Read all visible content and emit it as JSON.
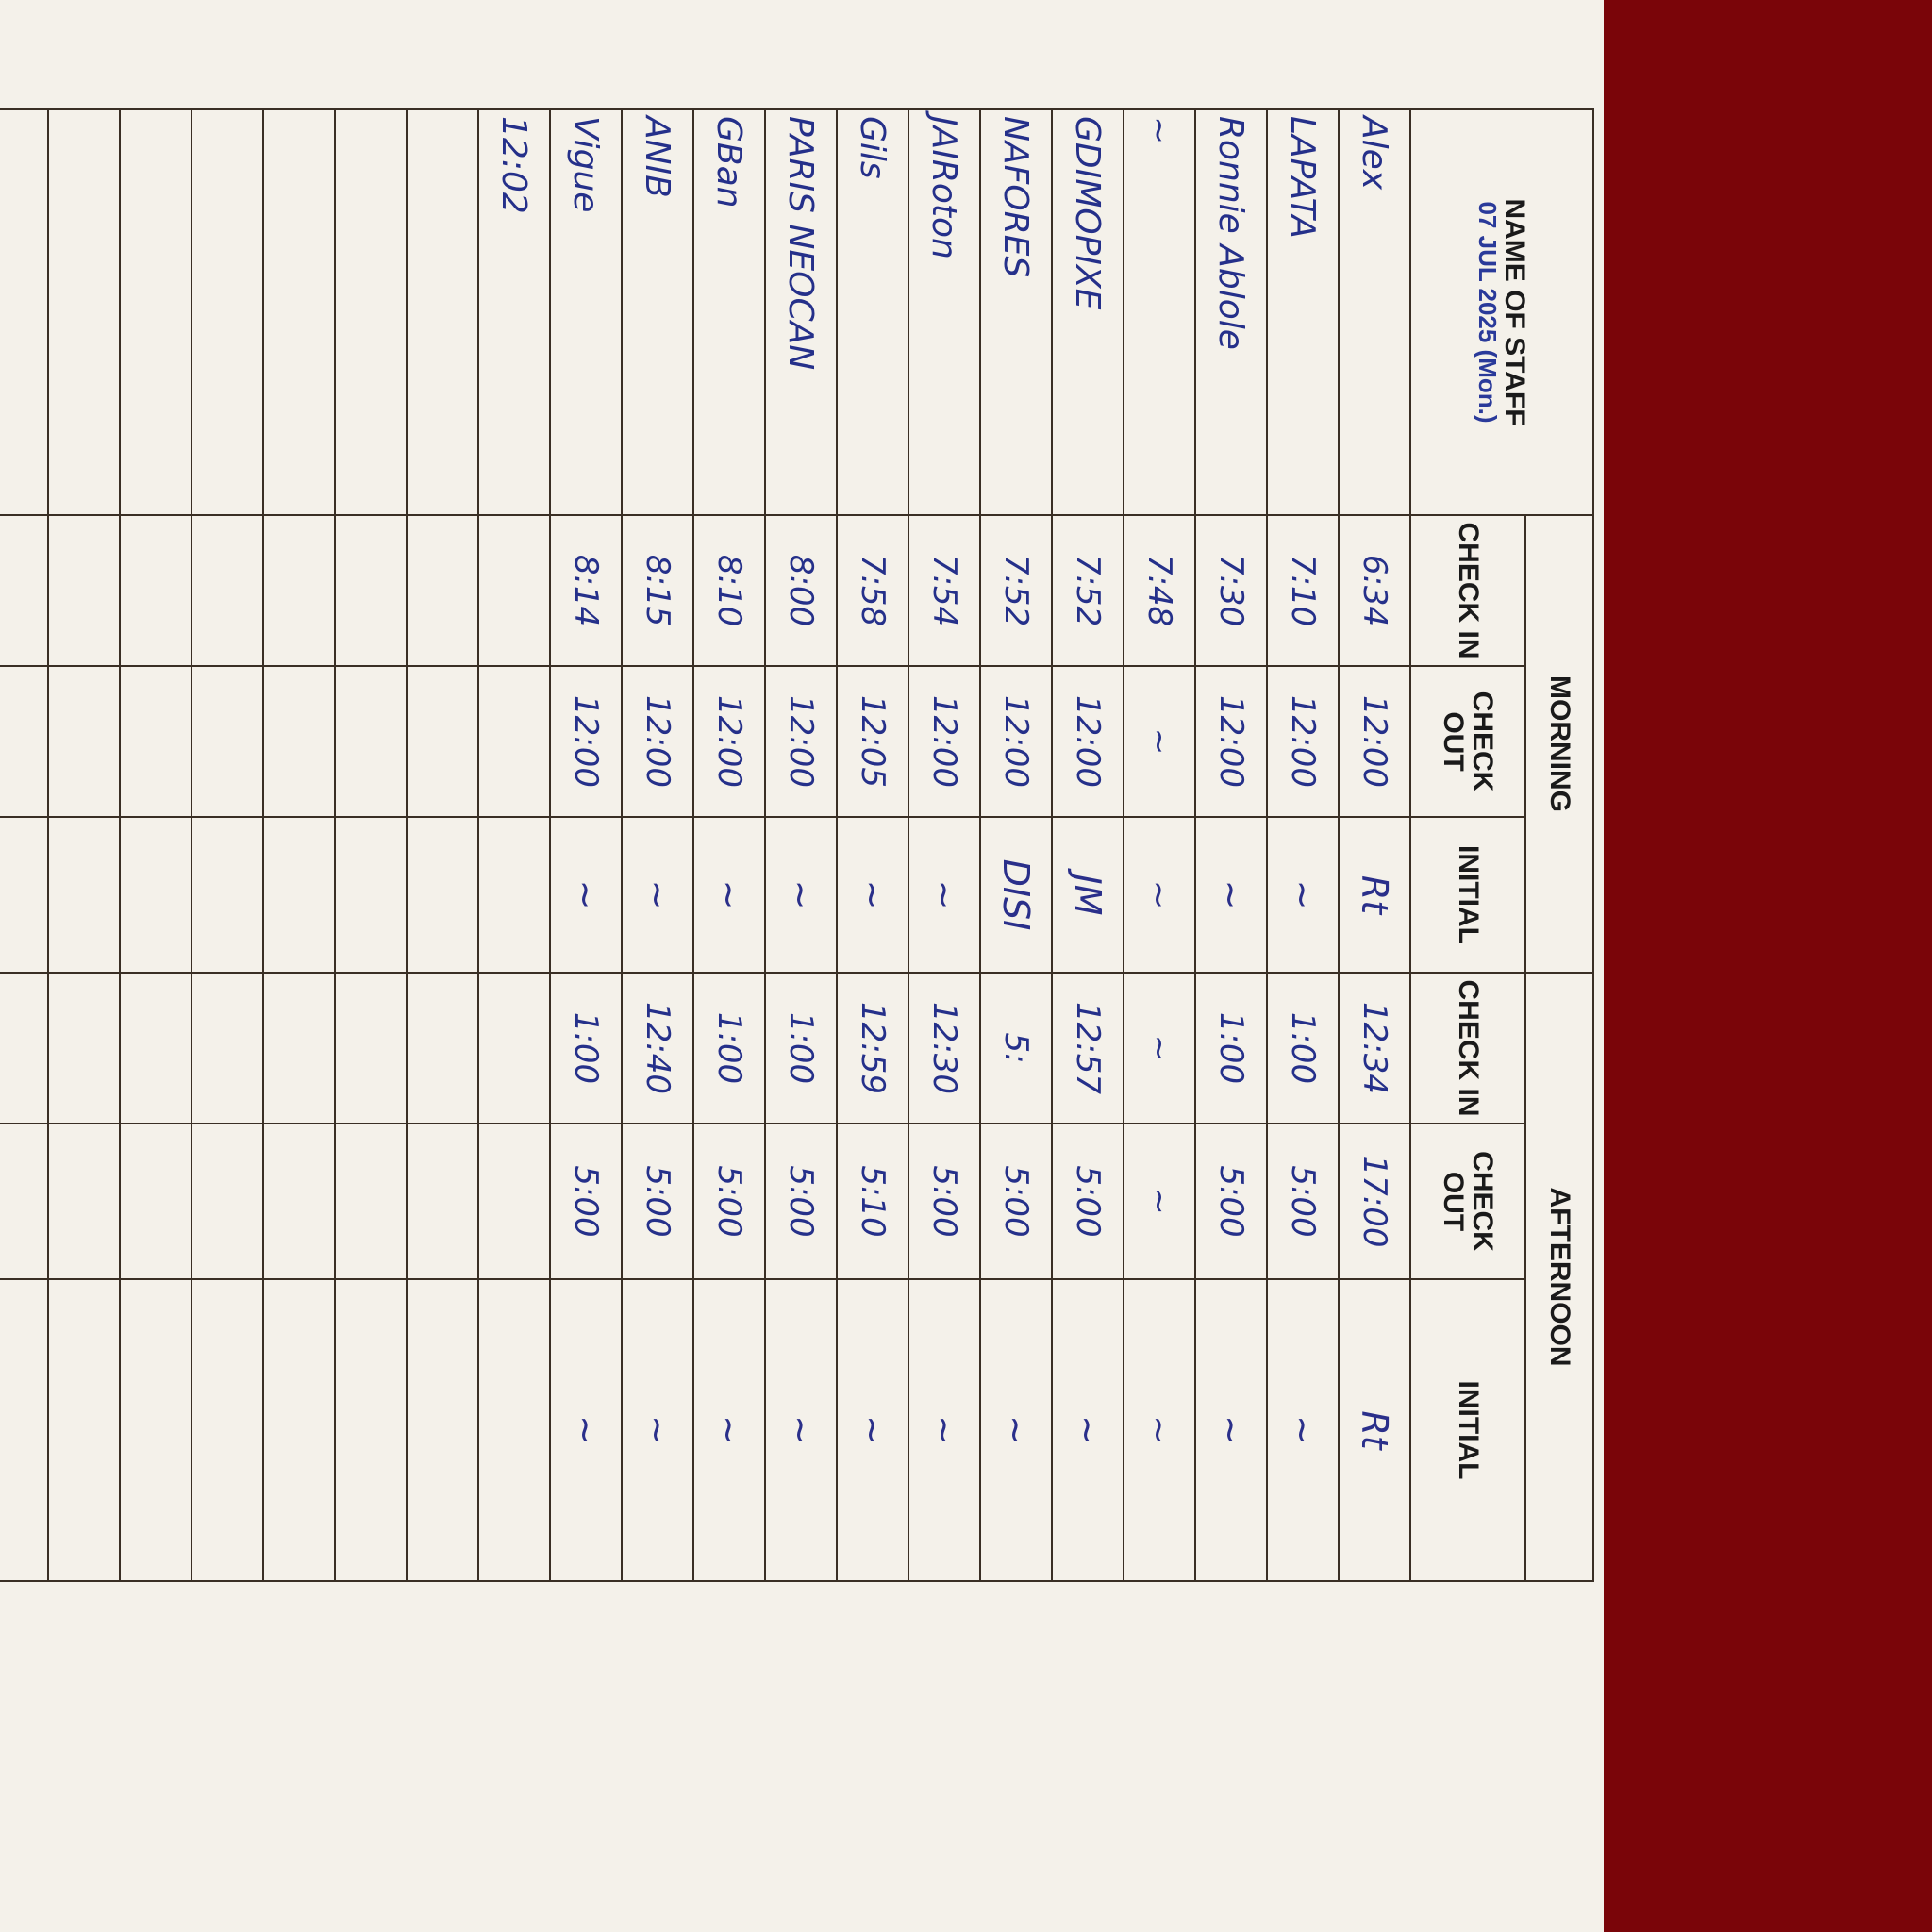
{
  "header": {
    "name_col": "NAME OF STAFF",
    "morning": "MORNING",
    "afternoon": "AFTERNOON",
    "check_in": "CHECK IN",
    "check_out": "CHECK OUT",
    "initial": "INITIAL"
  },
  "date": "07 JUL 2025 (Mon.)",
  "rows": [
    {
      "name": "Alex",
      "m_in": "6:34",
      "m_out": "12:00",
      "m_init": "Rt",
      "a_in": "12:34",
      "a_out": "17:00",
      "a_init": "Rt"
    },
    {
      "name": "LAPATA",
      "m_in": "7:10",
      "m_out": "12:00",
      "m_init": "~",
      "a_in": "1:00",
      "a_out": "5:00",
      "a_init": "~"
    },
    {
      "name": "Ronnie Ablole",
      "m_in": "7:30",
      "m_out": "12:00",
      "m_init": "~",
      "a_in": "1:00",
      "a_out": "5:00",
      "a_init": "~"
    },
    {
      "name": "~",
      "m_in": "7:48",
      "m_out": "~",
      "m_init": "~",
      "a_in": "~",
      "a_out": "~",
      "a_init": "~"
    },
    {
      "name": "GDIMOPIXE",
      "m_in": "7:52",
      "m_out": "12:00",
      "m_init": "JM",
      "a_in": "12:57",
      "a_out": "5:00",
      "a_init": "~"
    },
    {
      "name": "NAFORES",
      "m_in": "7:52",
      "m_out": "12:00",
      "m_init": "DISI",
      "a_in": "5:",
      "a_out": "5:00",
      "a_init": "~"
    },
    {
      "name": "JAIRoton",
      "m_in": "7:54",
      "m_out": "12:00",
      "m_init": "~",
      "a_in": "12:30",
      "a_out": "5:00",
      "a_init": "~"
    },
    {
      "name": "Gils",
      "m_in": "7:58",
      "m_out": "12:05",
      "m_init": "~",
      "a_in": "12:59",
      "a_out": "5:10",
      "a_init": "~"
    },
    {
      "name": "PARIS NEOCAN",
      "m_in": "8:00",
      "m_out": "12:00",
      "m_init": "~",
      "a_in": "1:00",
      "a_out": "5:00",
      "a_init": "~"
    },
    {
      "name": "GBan",
      "m_in": "8:10",
      "m_out": "12:00",
      "m_init": "~",
      "a_in": "1:00",
      "a_out": "5:00",
      "a_init": "~"
    },
    {
      "name": "ANIB",
      "m_in": "8:15",
      "m_out": "12:00",
      "m_init": "~",
      "a_in": "12:40",
      "a_out": "5:00",
      "a_init": "~"
    },
    {
      "name": "Vigue",
      "m_in": "8:14",
      "m_out": "12:00",
      "m_init": "~",
      "a_in": "1:00",
      "a_out": "5:00",
      "a_init": "~"
    },
    {
      "name": "12:02",
      "m_in": "",
      "m_out": "",
      "m_init": "",
      "a_in": "",
      "a_out": "",
      "a_init": ""
    }
  ]
}
